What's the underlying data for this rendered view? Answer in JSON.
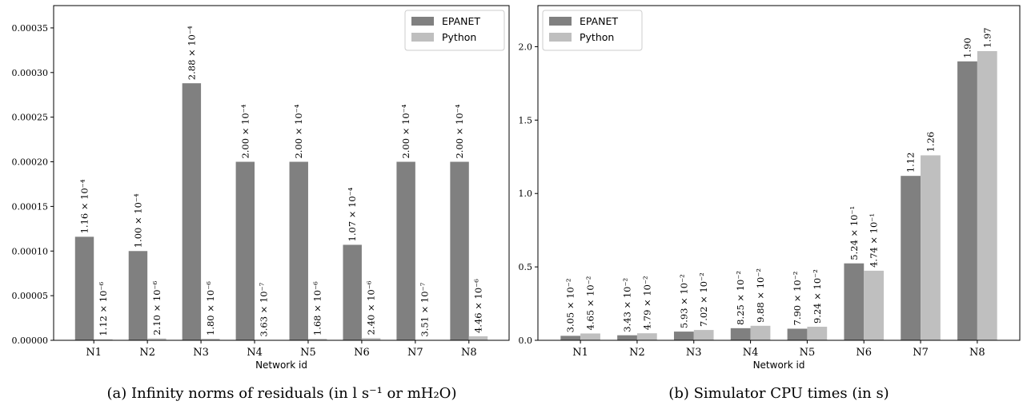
{
  "chart_data": [
    {
      "type": "bar",
      "caption": "(a) Infinity norms of residuals (in l s⁻¹ or mH₂O)",
      "xlabel": "Network id",
      "ylabel": "",
      "categories": [
        "N1",
        "N2",
        "N3",
        "N4",
        "N5",
        "N6",
        "N7",
        "N8"
      ],
      "ylim": [
        0,
        0.000375
      ],
      "yticks": [
        "0.00000",
        "0.00005",
        "0.00010",
        "0.00015",
        "0.00020",
        "0.00025",
        "0.00030",
        "0.00035"
      ],
      "ytick_values": [
        0,
        5e-05,
        0.0001,
        0.00015,
        0.0002,
        0.00025,
        0.0003,
        0.00035
      ],
      "legend_position": "top-right",
      "grid": false,
      "series": [
        {
          "name": "EPANET",
          "color": "#808080",
          "values": [
            0.000116,
            0.0001,
            0.000288,
            0.0002,
            0.0002,
            0.000107,
            0.0002,
            0.0002
          ],
          "labels": [
            "1.16 × 10⁻⁴",
            "1.00 × 10⁻⁴",
            "2.88 × 10⁻⁴",
            "2.00 × 10⁻⁴",
            "2.00 × 10⁻⁴",
            "1.07 × 10⁻⁴",
            "2.00 × 10⁻⁴",
            "2.00 × 10⁻⁴"
          ]
        },
        {
          "name": "Python",
          "color": "#bfbfbf",
          "values": [
            1.12e-06,
            2.1e-06,
            1.8e-06,
            3.63e-07,
            1.68e-06,
            2.4e-06,
            3.51e-07,
            4.46e-06
          ],
          "labels": [
            "1.12 × 10⁻⁶",
            "2.10 × 10⁻⁶",
            "1.80 × 10⁻⁶",
            "3.63 × 10⁻⁷",
            "1.68 × 10⁻⁶",
            "2.40 × 10⁻⁶",
            "3.51 × 10⁻⁷",
            "4.46 × 10⁻⁶"
          ]
        }
      ]
    },
    {
      "type": "bar",
      "caption": "(b) Simulator CPU times (in s)",
      "xlabel": "Network id",
      "ylabel": "",
      "categories": [
        "N1",
        "N2",
        "N3",
        "N4",
        "N5",
        "N6",
        "N7",
        "N8"
      ],
      "ylim": [
        0,
        2.28
      ],
      "yticks": [
        "0.0",
        "0.5",
        "1.0",
        "1.5",
        "2.0"
      ],
      "ytick_values": [
        0,
        0.5,
        1.0,
        1.5,
        2.0
      ],
      "legend_position": "top-left",
      "grid": false,
      "series": [
        {
          "name": "EPANET",
          "color": "#808080",
          "values": [
            0.0305,
            0.0343,
            0.0593,
            0.0825,
            0.079,
            0.524,
            1.12,
            1.9
          ],
          "labels": [
            "3.05 × 10⁻²",
            "3.43 × 10⁻²",
            "5.93 × 10⁻²",
            "8.25 × 10⁻²",
            "7.90 × 10⁻²",
            "5.24 × 10⁻¹",
            "1.12",
            "1.90"
          ]
        },
        {
          "name": "Python",
          "color": "#bfbfbf",
          "values": [
            0.0465,
            0.0479,
            0.0702,
            0.0988,
            0.0924,
            0.474,
            1.26,
            1.97
          ],
          "labels": [
            "4.65 × 10⁻²",
            "4.79 × 10⁻²",
            "7.02 × 10⁻²",
            "9.88 × 10⁻²",
            "9.24 × 10⁻²",
            "4.74 × 10⁻¹",
            "1.26",
            "1.97"
          ]
        }
      ]
    }
  ]
}
